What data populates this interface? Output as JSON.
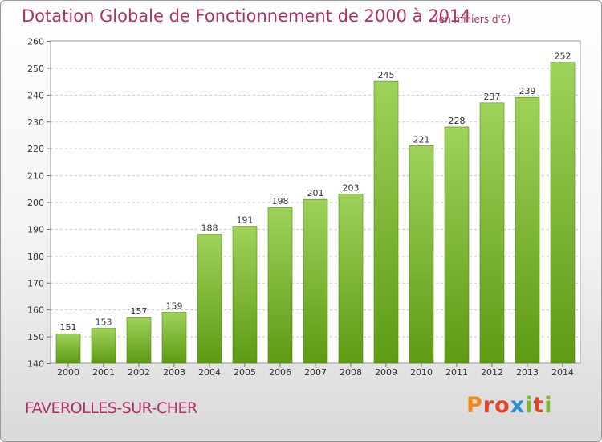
{
  "title": "Dotation Globale de Fonctionnement de 2000 à 2014",
  "subtitle": "(en milliers d'€)",
  "commune": "FAVEROLLES-SUR-CHER",
  "logo": {
    "text": "Proxiti",
    "letters": [
      "P",
      "r",
      "o",
      "x",
      "i",
      "t",
      "i"
    ],
    "colors": [
      "#f08a1c",
      "#e0452a",
      "#e0452a",
      "#2b8fd6",
      "#7fb92f",
      "#e0452a",
      "#7fb92f"
    ]
  },
  "chart_data": {
    "type": "bar",
    "categories": [
      "2000",
      "2001",
      "2002",
      "2003",
      "2004",
      "2005",
      "2006",
      "2007",
      "2008",
      "2009",
      "2010",
      "2011",
      "2012",
      "2013",
      "2014"
    ],
    "values": [
      151,
      153,
      157,
      159,
      188,
      191,
      198,
      201,
      203,
      245,
      221,
      228,
      237,
      239,
      252
    ],
    "ylim": [
      140,
      260
    ],
    "yticks": [
      140,
      150,
      160,
      170,
      180,
      190,
      200,
      210,
      220,
      230,
      240,
      250,
      260
    ],
    "grid": true,
    "bar_color_top": "#9fd25a",
    "bar_color_bottom": "#5e9a14",
    "title_color": "#b0306a"
  }
}
